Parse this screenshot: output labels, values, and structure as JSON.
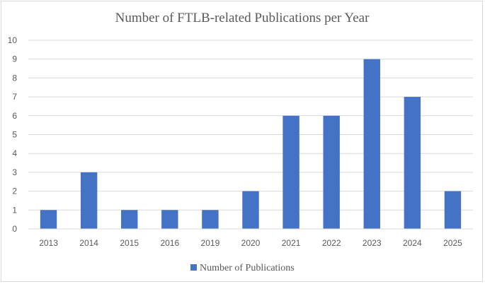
{
  "chart_data": {
    "type": "bar",
    "title": "Number of FTLB-related Publications per Year",
    "categories": [
      "2013",
      "2014",
      "2015",
      "2016",
      "2019",
      "2020",
      "2021",
      "2022",
      "2023",
      "2024",
      "2025"
    ],
    "series": [
      {
        "name": "Number of Publications",
        "values": [
          1,
          3,
          1,
          1,
          1,
          2,
          6,
          6,
          9,
          7,
          2
        ],
        "color": "#4472c4"
      }
    ],
    "xlabel": "",
    "ylabel": "",
    "ylim": [
      0,
      10
    ],
    "yticks": [
      "0",
      "1",
      "2",
      "3",
      "4",
      "5",
      "6",
      "7",
      "8",
      "9",
      "10"
    ],
    "grid": true,
    "legend_position": "bottom"
  }
}
